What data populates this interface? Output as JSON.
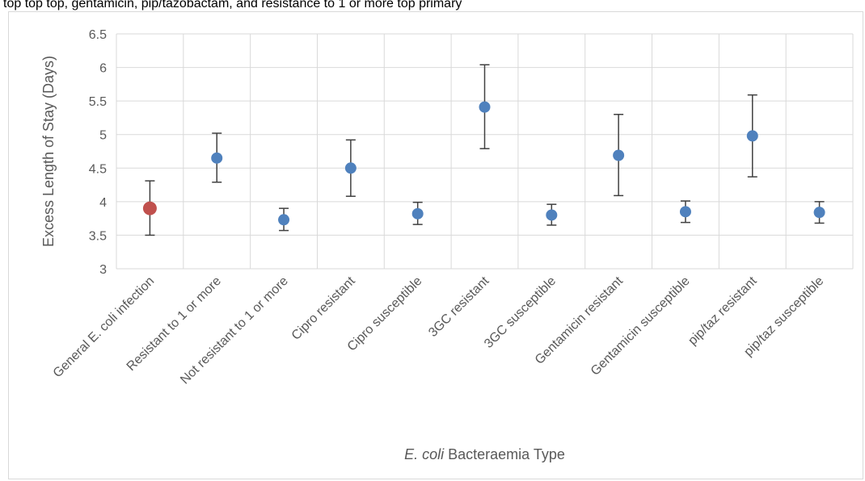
{
  "caption": "top top top, gentamicin, pip/tazobactam, and resistance to 1 or more top primary",
  "chart_data": {
    "type": "scatter",
    "subtype": "point-with-error-bars",
    "title": "",
    "xlabel_italic": "E. coli",
    "xlabel_rest": " Bacteraemia Type",
    "ylabel": "Excess Length of Stay (Days)",
    "ylim": [
      3,
      6.5
    ],
    "yticks": [
      3,
      3.5,
      4,
      4.5,
      5,
      5.5,
      6,
      6.5
    ],
    "ytick_labels": [
      "3",
      "3.5",
      "4",
      "4.5",
      "5",
      "5.5",
      "6",
      "6.5"
    ],
    "grid": true,
    "categories": [
      "General E. coli infection",
      "Resistant to 1 or more",
      "Not resistant to 1 or more",
      "Cipro resistant",
      "Cipro susceptible",
      "3GC resistant",
      "3GC susceptible",
      "Gentamicin resistant",
      "Gentamicin susceptible",
      "pip/taz resistant",
      "pip/taz susceptible"
    ],
    "values": [
      3.9,
      4.65,
      3.73,
      4.5,
      3.82,
      5.41,
      3.8,
      4.69,
      3.85,
      4.98,
      3.84
    ],
    "lower": [
      3.5,
      4.29,
      3.57,
      4.08,
      3.66,
      4.79,
      3.65,
      4.09,
      3.69,
      4.37,
      3.68
    ],
    "upper": [
      4.31,
      5.02,
      3.9,
      4.92,
      3.99,
      6.04,
      3.96,
      5.3,
      4.01,
      5.59,
      4.0
    ],
    "colors": [
      "#c0504d",
      "#4f81bd",
      "#4f81bd",
      "#4f81bd",
      "#4f81bd",
      "#4f81bd",
      "#4f81bd",
      "#4f81bd",
      "#4f81bd",
      "#4f81bd",
      "#4f81bd"
    ],
    "gridline_color": "#d9d9d9",
    "errorbar_color": "#404040",
    "text_color": "#595959"
  }
}
